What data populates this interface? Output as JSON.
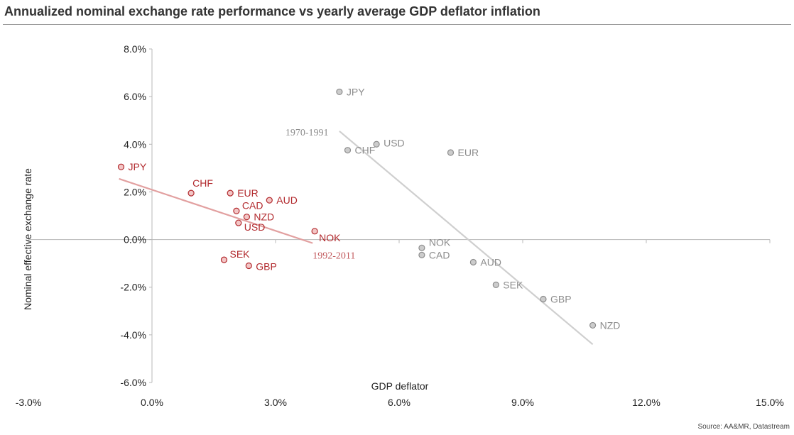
{
  "chart_data": {
    "type": "scatter",
    "title": "Annualized nominal exchange rate performance vs yearly average GDP deflator inflation",
    "xlabel": "GDP deflator",
    "ylabel": "Nominal effective exchange rate",
    "xlim": [
      -3.0,
      15.0
    ],
    "ylim": [
      -6.0,
      8.0
    ],
    "x_ticks": [
      -3.0,
      0.0,
      3.0,
      6.0,
      9.0,
      12.0,
      15.0
    ],
    "y_ticks": [
      8.0,
      6.0,
      4.0,
      2.0,
      0.0,
      -2.0,
      -4.0,
      -6.0
    ],
    "x_tick_labels": [
      "-3.0%",
      "0.0%",
      "3.0%",
      "6.0%",
      "9.0%",
      "12.0%",
      "15.0%"
    ],
    "y_tick_labels": [
      "8.0%",
      "6.0%",
      "4.0%",
      "2.0%",
      "0.0%",
      "-2.0%",
      "-4.0%",
      "-6.0%"
    ],
    "series": [
      {
        "name": "1992-2011",
        "color": "#b22a2e",
        "fill": "#f3c6c6",
        "line_color": "#e2a0a0",
        "trend": [
          [
            -0.8,
            2.55
          ],
          [
            3.9,
            -0.15
          ]
        ],
        "trend_label": "1992-2011",
        "points": [
          {
            "label": "JPY",
            "x": -0.75,
            "y": 3.05
          },
          {
            "label": "CHF",
            "x": 0.95,
            "y": 1.95
          },
          {
            "label": "EUR",
            "x": 1.9,
            "y": 1.95
          },
          {
            "label": "AUD",
            "x": 2.85,
            "y": 1.65
          },
          {
            "label": "CAD",
            "x": 2.05,
            "y": 1.2
          },
          {
            "label": "NZD",
            "x": 2.3,
            "y": 0.95
          },
          {
            "label": "USD",
            "x": 2.1,
            "y": 0.7
          },
          {
            "label": "NOK",
            "x": 3.95,
            "y": 0.35
          },
          {
            "label": "SEK",
            "x": 1.75,
            "y": -0.85
          },
          {
            "label": "GBP",
            "x": 2.35,
            "y": -1.1
          }
        ]
      },
      {
        "name": "1970-1991",
        "color": "#8c8c8c",
        "fill": "#cccccc",
        "line_color": "#cfcfcf",
        "trend": [
          [
            4.55,
            4.55
          ],
          [
            10.7,
            -4.4
          ]
        ],
        "trend_label": "1970-1991",
        "points": [
          {
            "label": "JPY",
            "x": 4.55,
            "y": 6.2
          },
          {
            "label": "USD",
            "x": 5.45,
            "y": 4.0
          },
          {
            "label": "CHF",
            "x": 4.75,
            "y": 3.75
          },
          {
            "label": "EUR",
            "x": 7.25,
            "y": 3.65
          },
          {
            "label": "NOK",
            "x": 6.55,
            "y": -0.35
          },
          {
            "label": "CAD",
            "x": 6.55,
            "y": -0.65
          },
          {
            "label": "AUD",
            "x": 7.8,
            "y": -0.95
          },
          {
            "label": "SEK",
            "x": 8.35,
            "y": -1.9
          },
          {
            "label": "GBP",
            "x": 9.5,
            "y": -2.5
          },
          {
            "label": "NZD",
            "x": 10.7,
            "y": -3.6
          }
        ]
      }
    ],
    "source": "Source: AA&MR, Datastream"
  }
}
